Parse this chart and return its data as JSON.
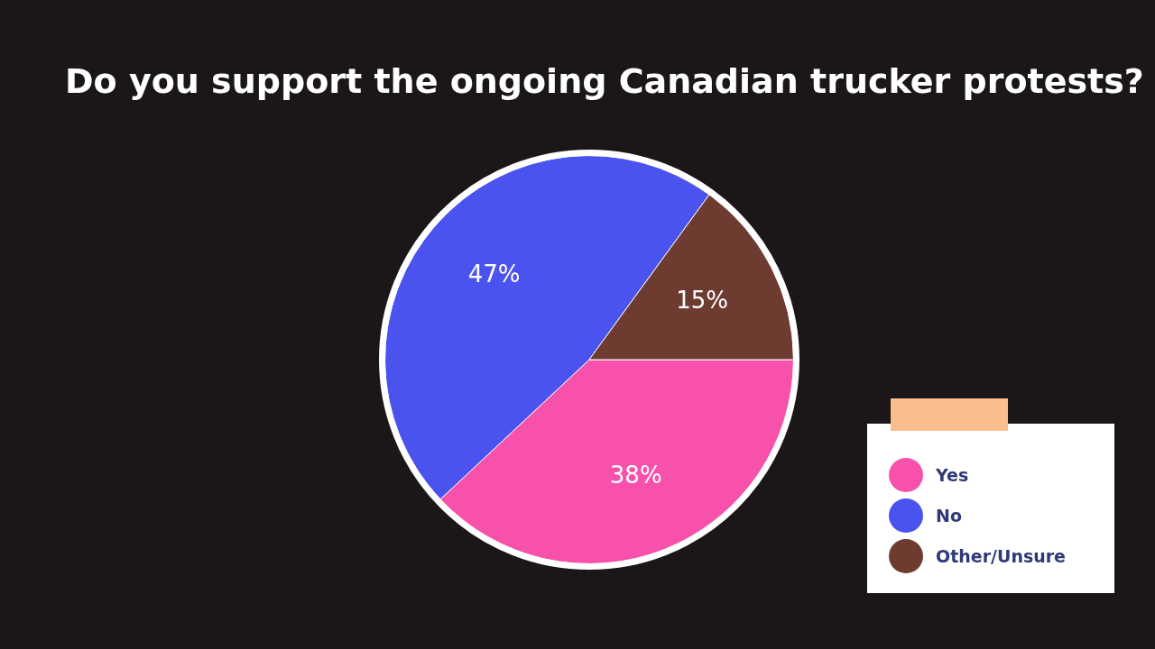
{
  "chart_data": {
    "type": "pie",
    "title": "Do you support the ongoing Canadian trucker protests?",
    "categories": [
      "Yes",
      "No",
      "Other/Unsure"
    ],
    "values": [
      38,
      47,
      15
    ],
    "colors": [
      "#f751ab",
      "#4b53ef",
      "#6e3b30"
    ],
    "value_labels": [
      "38%",
      "47%",
      "15%"
    ],
    "legend": "bottom right"
  }
}
